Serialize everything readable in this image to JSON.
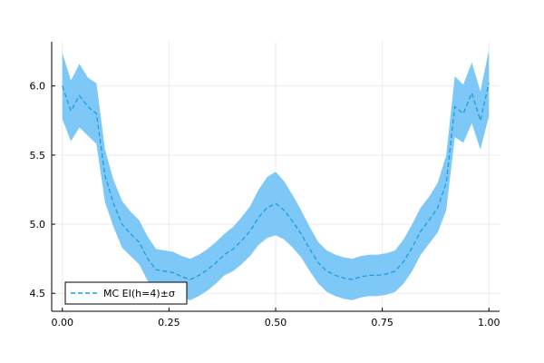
{
  "chart_data": {
    "type": "line",
    "title": "",
    "xlabel": "",
    "ylabel": "",
    "xlim": [
      -0.025,
      1.025
    ],
    "ylim": [
      4.37,
      6.32
    ],
    "grid": true,
    "legend_position": "bottom-left",
    "x_ticks": [
      0.0,
      0.25,
      0.5,
      0.75,
      1.0
    ],
    "x_tick_labels": [
      "0.00",
      "0.25",
      "0.50",
      "0.75",
      "1.00"
    ],
    "y_ticks": [
      4.5,
      5.0,
      5.5,
      6.0
    ],
    "y_tick_labels": [
      "4.5",
      "5.0",
      "5.5",
      "6.0"
    ],
    "colors": {
      "band": "#7ec8f8",
      "line": "#1a9de0",
      "axis": "#000000",
      "grid": "#ebebeb"
    },
    "series": [
      {
        "name": "MC EI(h=4)±σ",
        "style": "dashed",
        "x": [
          0.0,
          0.02,
          0.04,
          0.06,
          0.08,
          0.1,
          0.12,
          0.14,
          0.16,
          0.18,
          0.2,
          0.22,
          0.24,
          0.26,
          0.28,
          0.3,
          0.32,
          0.34,
          0.36,
          0.38,
          0.4,
          0.42,
          0.44,
          0.46,
          0.48,
          0.5,
          0.52,
          0.54,
          0.56,
          0.58,
          0.6,
          0.62,
          0.64,
          0.66,
          0.68,
          0.7,
          0.72,
          0.74,
          0.76,
          0.78,
          0.8,
          0.82,
          0.84,
          0.86,
          0.88,
          0.9,
          0.92,
          0.94,
          0.96,
          0.98,
          1.0
        ],
        "y": [
          6.0,
          5.82,
          5.93,
          5.85,
          5.8,
          5.35,
          5.15,
          5.0,
          4.93,
          4.87,
          4.75,
          4.67,
          4.66,
          4.65,
          4.62,
          4.6,
          4.63,
          4.67,
          4.72,
          4.78,
          4.82,
          4.88,
          4.95,
          5.05,
          5.12,
          5.15,
          5.1,
          5.02,
          4.93,
          4.82,
          4.72,
          4.66,
          4.63,
          4.61,
          4.6,
          4.62,
          4.63,
          4.63,
          4.64,
          4.66,
          4.73,
          4.83,
          4.95,
          5.03,
          5.12,
          5.3,
          5.85,
          5.8,
          5.95,
          5.75,
          6.02
        ],
        "sigma": [
          0.24,
          0.22,
          0.23,
          0.21,
          0.22,
          0.19,
          0.17,
          0.17,
          0.16,
          0.16,
          0.16,
          0.15,
          0.15,
          0.15,
          0.15,
          0.15,
          0.15,
          0.15,
          0.15,
          0.15,
          0.16,
          0.17,
          0.18,
          0.2,
          0.22,
          0.23,
          0.21,
          0.19,
          0.17,
          0.16,
          0.15,
          0.15,
          0.15,
          0.15,
          0.15,
          0.15,
          0.15,
          0.15,
          0.15,
          0.15,
          0.16,
          0.17,
          0.17,
          0.17,
          0.18,
          0.2,
          0.22,
          0.21,
          0.22,
          0.21,
          0.24
        ]
      }
    ]
  }
}
